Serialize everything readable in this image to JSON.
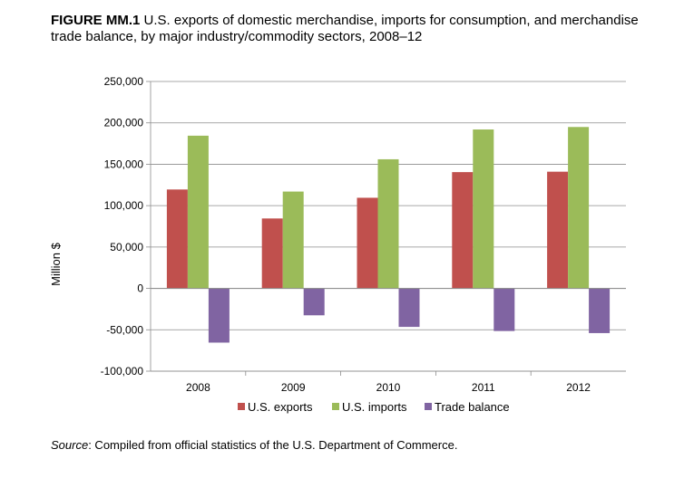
{
  "figure": {
    "label": "FIGURE MM.1",
    "title": "U.S. exports of domestic merchandise, imports for consumption, and merchandise trade balance, by major industry/commodity sectors, 2008–12",
    "source_label": "Source",
    "source_text": ": Compiled from official statistics of the U.S. Department of Commerce."
  },
  "chart_data": {
    "type": "bar",
    "categories": [
      "2008",
      "2009",
      "2010",
      "2011",
      "2012"
    ],
    "series": [
      {
        "name": "U.S. exports",
        "color": "#C0504D",
        "values": [
          119500,
          84500,
          109500,
          140500,
          141000
        ]
      },
      {
        "name": "U.S. imports",
        "color": "#9BBB59",
        "values": [
          184500,
          117000,
          156000,
          192000,
          195000
        ]
      },
      {
        "name": "Trade balance",
        "color": "#8064A2",
        "values": [
          -65500,
          -32500,
          -46500,
          -51500,
          -54000
        ]
      }
    ],
    "ylabel": "Million $",
    "xlabel": "",
    "ylim": [
      -100000,
      250000
    ],
    "yticks": [
      250000,
      200000,
      150000,
      100000,
      50000,
      0,
      -50000,
      -100000
    ],
    "ytick_labels": [
      "250,000",
      "200,000",
      "150,000",
      "100,000",
      "50,000",
      "0",
      "-50,000",
      "-100,000"
    ],
    "grid": true,
    "legend_position": "bottom"
  }
}
